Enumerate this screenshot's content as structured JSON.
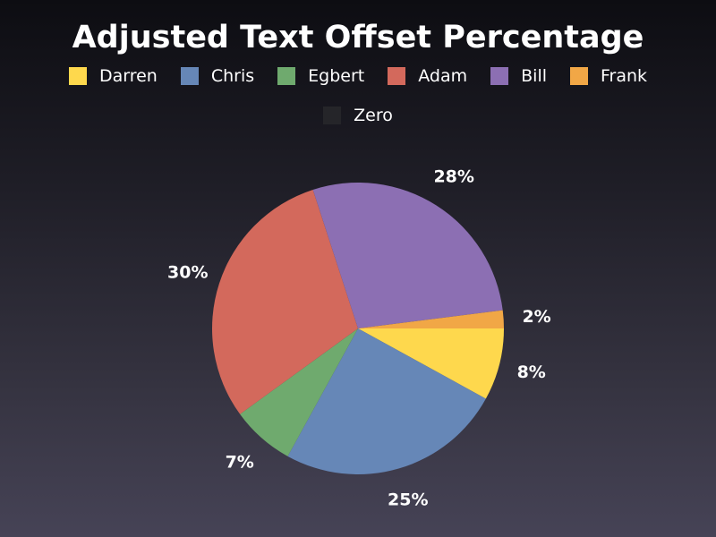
{
  "chart_data": {
    "type": "pie",
    "title": "Adjusted Text Offset Percentage",
    "legend_position": "top",
    "categories": [
      "Darren",
      "Chris",
      "Egbert",
      "Adam",
      "Bill",
      "Frank",
      "Zero"
    ],
    "values": [
      8,
      25,
      7,
      30,
      28,
      2,
      0
    ],
    "labels": [
      "8%",
      "25%",
      "7%",
      "30%",
      "28%",
      "2%",
      ""
    ],
    "colors": [
      "#fed84d",
      "#6687b7",
      "#6faa6e",
      "#d3695c",
      "#8c6fb3",
      "#f1a746",
      "#252529"
    ]
  }
}
